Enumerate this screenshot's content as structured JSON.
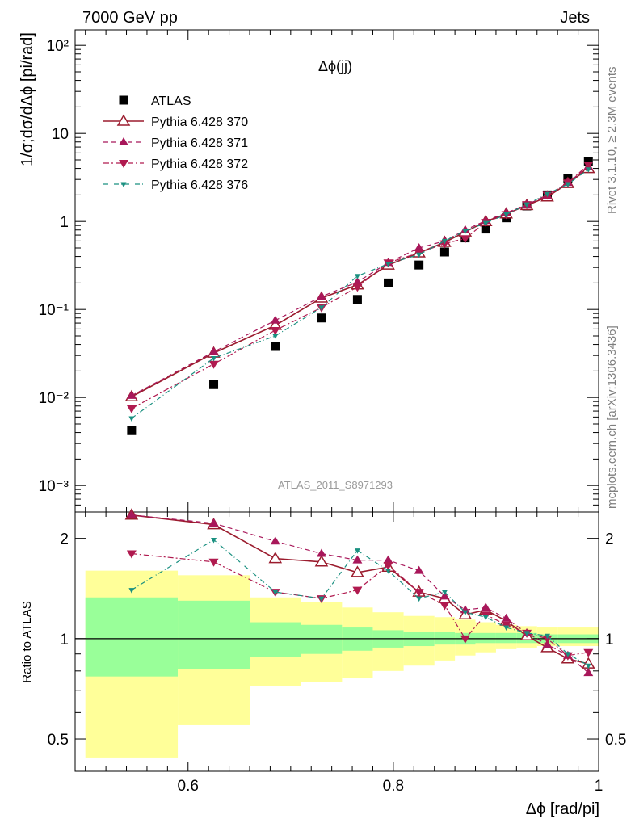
{
  "header": {
    "left": "7000 GeV pp",
    "right": "Jets"
  },
  "side_text": {
    "top": "Rivet 3.1.10, ≥ 2.3M events",
    "bottom": "mcplots.cern.ch [arXiv:1306.3436]"
  },
  "watermark": "ATLAS_2011_S8971293",
  "colors": {
    "data": "#000000",
    "p370": "#9b1c2e",
    "p371": "#a8175a",
    "p372": "#b01a4f",
    "p376": "#1a9080",
    "band_outer": "#ffff99",
    "band_inner": "#99ff99"
  },
  "chart_data": [
    {
      "type": "scatter",
      "title": "Δϕ(jj)",
      "ylabel": "1/σ;dσ/dΔϕ [pi/rad]",
      "xlabel": "",
      "yscale": "log",
      "xlim": [
        0.49,
        1.0
      ],
      "ylim": [
        0.0005,
        150
      ],
      "y_ticks": [
        "10⁻³",
        "10⁻²",
        "10⁻¹",
        "1",
        "10",
        "10²"
      ],
      "legend_position": "top-left",
      "x": [
        0.545,
        0.625,
        0.685,
        0.73,
        0.765,
        0.795,
        0.825,
        0.85,
        0.87,
        0.89,
        0.91,
        0.93,
        0.95,
        0.97,
        0.99
      ],
      "series": [
        {
          "name": "ATLAS",
          "style": "data",
          "values": [
            0.0042,
            0.014,
            0.038,
            0.08,
            0.13,
            0.2,
            0.32,
            0.45,
            0.65,
            0.82,
            1.1,
            1.5,
            2.0,
            3.1,
            4.8
          ]
        },
        {
          "name": "Pythia 6.428 370",
          "style": "p370",
          "values": [
            0.0102,
            0.032,
            0.066,
            0.135,
            0.19,
            0.32,
            0.44,
            0.58,
            0.76,
            1.0,
            1.22,
            1.52,
            1.9,
            2.7,
            4.0
          ]
        },
        {
          "name": "Pythia 6.428 371",
          "style": "p371",
          "values": [
            0.0105,
            0.033,
            0.075,
            0.14,
            0.205,
            0.34,
            0.5,
            0.6,
            0.8,
            1.02,
            1.25,
            1.56,
            1.95,
            2.75,
            4.2
          ]
        },
        {
          "name": "Pythia 6.428 372",
          "style": "p372",
          "values": [
            0.0075,
            0.024,
            0.058,
            0.105,
            0.18,
            0.34,
            0.44,
            0.56,
            0.64,
            0.98,
            1.2,
            1.56,
            2.0,
            2.75,
            4.4
          ]
        },
        {
          "name": "Pythia 6.428 376",
          "style": "p376",
          "values": [
            0.0058,
            0.028,
            0.05,
            0.105,
            0.24,
            0.33,
            0.42,
            0.6,
            0.78,
            0.96,
            1.2,
            1.56,
            2.05,
            2.65,
            3.9
          ]
        }
      ]
    },
    {
      "type": "line",
      "ylabel": "Ratio to ATLAS",
      "xlabel": "Δϕ [rad/pi]",
      "yscale": "log",
      "xlim": [
        0.49,
        1.0
      ],
      "ylim": [
        0.4,
        2.4
      ],
      "x_ticks": [
        "0.6",
        "0.8",
        "1"
      ],
      "y_ticks": [
        "0.5",
        "1",
        "2"
      ],
      "x": [
        0.545,
        0.625,
        0.685,
        0.73,
        0.765,
        0.795,
        0.825,
        0.85,
        0.87,
        0.89,
        0.91,
        0.93,
        0.95,
        0.97,
        0.99
      ],
      "series": [
        {
          "name": "Pythia 6.428 370",
          "style": "p370",
          "values": [
            2.35,
            2.2,
            1.74,
            1.7,
            1.58,
            1.64,
            1.38,
            1.32,
            1.18,
            1.22,
            1.13,
            1.02,
            0.94,
            0.87,
            0.84
          ]
        },
        {
          "name": "Pythia 6.428 371",
          "style": "p371",
          "values": [
            2.35,
            2.22,
            1.96,
            1.8,
            1.72,
            1.72,
            1.6,
            1.34,
            1.22,
            1.24,
            1.15,
            1.04,
            0.96,
            0.89,
            0.79
          ]
        },
        {
          "name": "Pythia 6.428 372",
          "style": "p372",
          "values": [
            1.8,
            1.7,
            1.38,
            1.32,
            1.4,
            1.66,
            1.38,
            1.26,
            1.0,
            1.18,
            1.1,
            1.04,
            1.0,
            0.89,
            0.91
          ]
        },
        {
          "name": "Pythia 6.428 376",
          "style": "p376",
          "values": [
            1.4,
            1.98,
            1.38,
            1.32,
            1.84,
            1.6,
            1.32,
            1.38,
            1.2,
            1.16,
            1.08,
            1.04,
            1.02,
            0.9,
            0.83
          ]
        }
      ],
      "bands": {
        "edges": [
          0.5,
          0.59,
          0.66,
          0.71,
          0.75,
          0.78,
          0.81,
          0.84,
          0.86,
          0.88,
          0.9,
          0.92,
          0.94,
          0.96,
          0.98,
          1.0
        ],
        "outer_low": [
          0.44,
          0.55,
          0.72,
          0.74,
          0.76,
          0.8,
          0.83,
          0.86,
          0.89,
          0.91,
          0.93,
          0.94,
          0.95,
          0.95,
          0.95
        ],
        "outer_high": [
          1.6,
          1.55,
          1.33,
          1.29,
          1.24,
          1.2,
          1.17,
          1.16,
          1.14,
          1.12,
          1.1,
          1.09,
          1.08,
          1.08,
          1.08
        ],
        "inner_low": [
          0.77,
          0.81,
          0.88,
          0.9,
          0.92,
          0.94,
          0.95,
          0.96,
          0.96,
          0.97,
          0.97,
          0.97,
          0.97,
          0.97,
          0.97
        ],
        "inner_high": [
          1.33,
          1.3,
          1.12,
          1.1,
          1.08,
          1.06,
          1.05,
          1.05,
          1.04,
          1.04,
          1.04,
          1.04,
          1.03,
          1.03,
          1.03
        ]
      }
    }
  ]
}
